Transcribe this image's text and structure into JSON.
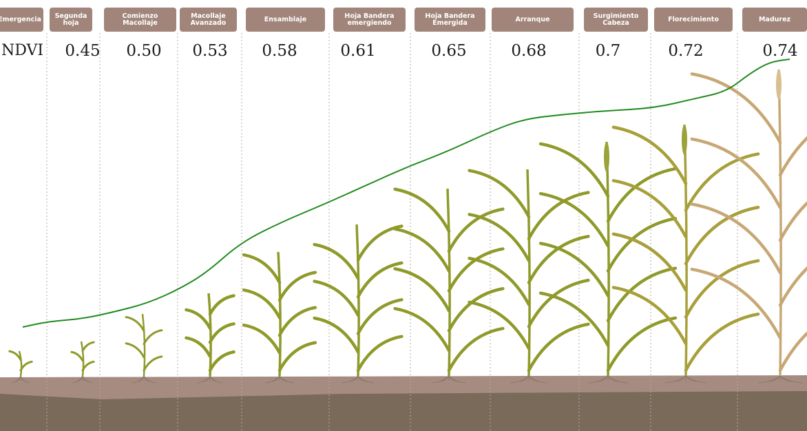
{
  "colors": {
    "header_bg": "#a1857a",
    "curve": "#1e8a1e",
    "soil_top": "#a58b80",
    "soil_bottom": "#7a6a5a",
    "plant_leaf": "#8f9a2a",
    "plant_ripe": "#c7a875"
  },
  "diagram": {
    "ndvi_label": "NDVI",
    "stages": [
      {
        "label": "Emergencia",
        "ndvi": ""
      },
      {
        "label": "Segunda\nhoja",
        "ndvi": "0.45"
      },
      {
        "label": "Comienzo\nMacollaje",
        "ndvi": "0.50"
      },
      {
        "label": "Macollaje\nAvanzado",
        "ndvi": "0.53"
      },
      {
        "label": "Ensamblaje",
        "ndvi": "0.58"
      },
      {
        "label": "Hoja Bandera\nemergiendo",
        "ndvi": "0.61"
      },
      {
        "label": "Hoja Bandera\nEmergida",
        "ndvi": "0.65"
      },
      {
        "label": "Arranque",
        "ndvi": "0.68"
      },
      {
        "label": "Surgimiento\nCabeza",
        "ndvi": "0.7"
      },
      {
        "label": "Florecimiento",
        "ndvi": "0.72"
      },
      {
        "label": "Madurez",
        "ndvi": "0.74"
      }
    ]
  }
}
